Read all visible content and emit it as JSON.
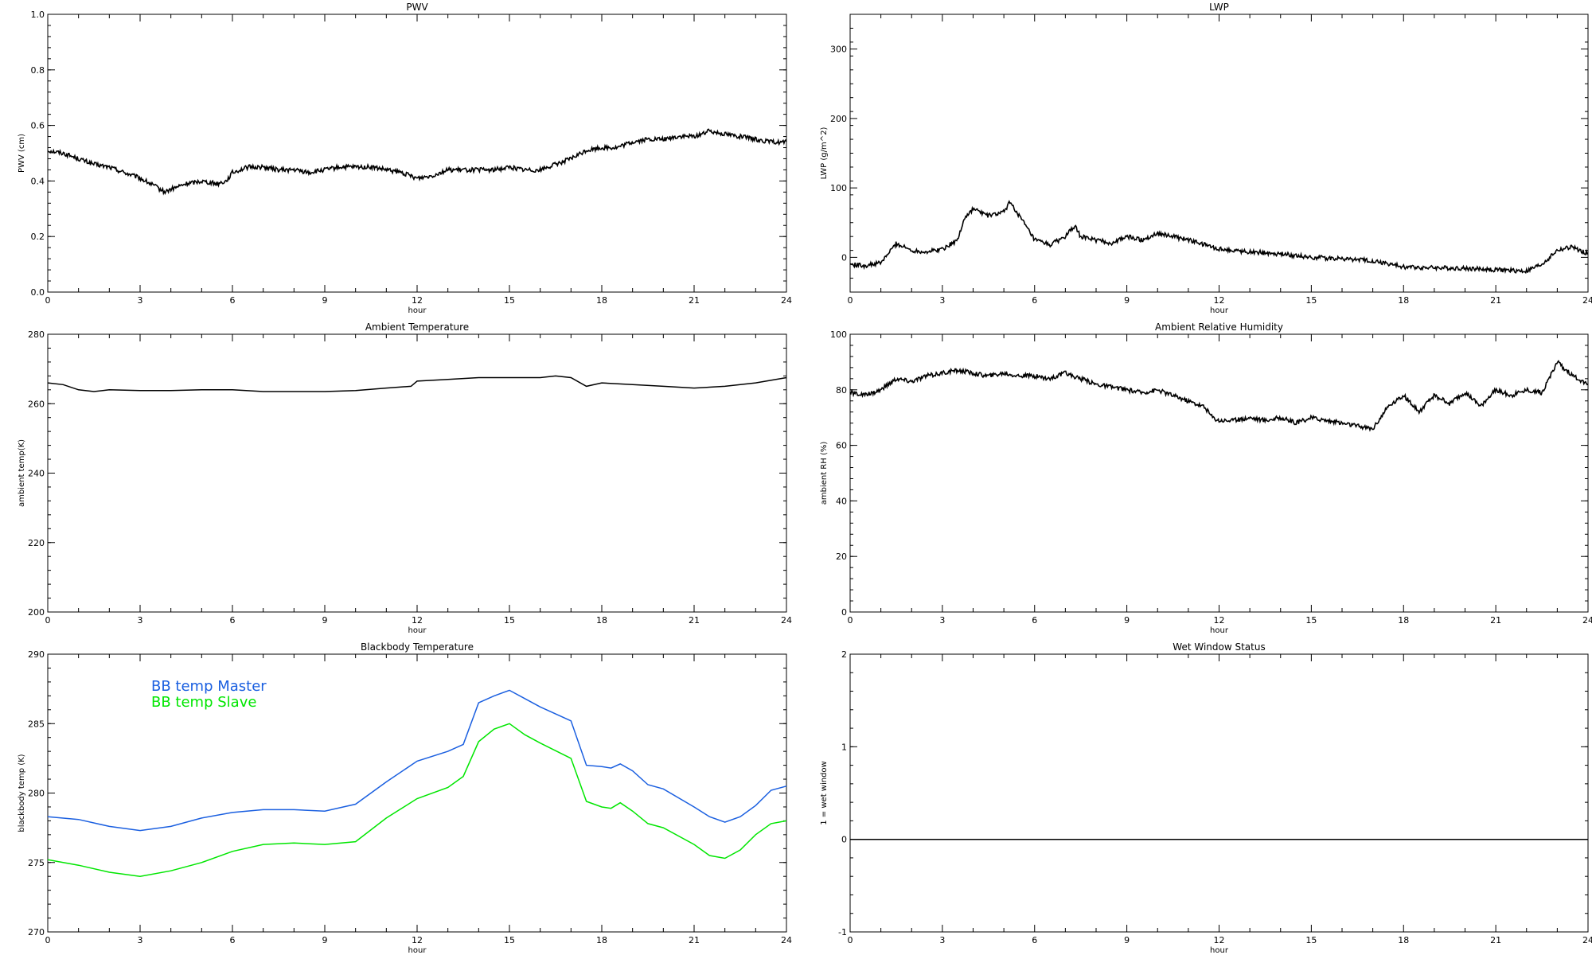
{
  "figure": {
    "panels": [
      {
        "title": "PWV",
        "xlabel": "hour",
        "ylabel": "PWV (cm)"
      },
      {
        "title": "LWP",
        "xlabel": "hour",
        "ylabel": "LWP (g/m^2)"
      },
      {
        "title": "Ambient Temperature",
        "xlabel": "hour",
        "ylabel": "ambient temp(K)"
      },
      {
        "title": "Ambient Relative Humidity",
        "xlabel": "hour",
        "ylabel": "ambient RH (%)"
      },
      {
        "title": "Blackbody Temperature",
        "xlabel": "hour",
        "ylabel": "blackbody temp (K)"
      },
      {
        "title": "Wet Window Status",
        "xlabel": "hour",
        "ylabel": "1 = wet window"
      }
    ]
  },
  "chart_data": [
    {
      "type": "line",
      "title": "PWV",
      "xlabel": "hour",
      "ylabel": "PWV (cm)",
      "xlim": [
        0,
        24
      ],
      "ylim": [
        0.0,
        1.0
      ],
      "xticks": [
        "0",
        "3",
        "6",
        "9",
        "12",
        "15",
        "18",
        "21",
        "24"
      ],
      "yticks": [
        "0.0",
        "0.2",
        "0.4",
        "0.6",
        "0.8",
        "1.0"
      ],
      "noisy": true,
      "series": [
        {
          "color": "#000000",
          "x": [
            0,
            0.5,
            1,
            1.5,
            2,
            2.5,
            3,
            3.5,
            3.8,
            4,
            4.5,
            5,
            5.5,
            5.8,
            6,
            6.5,
            7,
            7.5,
            8,
            8.5,
            9,
            9.5,
            10,
            10.5,
            11,
            11.5,
            12,
            12.5,
            13,
            13.5,
            14,
            14.5,
            15,
            15.5,
            16,
            16.5,
            17,
            17.5,
            18,
            18.5,
            19,
            19.5,
            20,
            20.5,
            21,
            21.5,
            22,
            22.5,
            23,
            23.5,
            24
          ],
          "y": [
            0.51,
            0.5,
            0.48,
            0.46,
            0.45,
            0.43,
            0.41,
            0.38,
            0.36,
            0.37,
            0.39,
            0.4,
            0.39,
            0.4,
            0.43,
            0.45,
            0.45,
            0.44,
            0.44,
            0.43,
            0.44,
            0.45,
            0.45,
            0.45,
            0.44,
            0.43,
            0.41,
            0.42,
            0.44,
            0.44,
            0.44,
            0.44,
            0.45,
            0.44,
            0.44,
            0.46,
            0.48,
            0.51,
            0.52,
            0.52,
            0.54,
            0.55,
            0.55,
            0.56,
            0.56,
            0.58,
            0.57,
            0.56,
            0.55,
            0.54,
            0.54
          ]
        }
      ]
    },
    {
      "type": "line",
      "title": "LWP",
      "xlabel": "hour",
      "ylabel": "LWP (g/m^2)",
      "xlim": [
        0,
        24
      ],
      "ylim": [
        -50,
        350
      ],
      "xticks": [
        "0",
        "3",
        "6",
        "9",
        "12",
        "15",
        "18",
        "21",
        "24"
      ],
      "yticks": [
        "0",
        "100",
        "200",
        "300"
      ],
      "noisy": true,
      "series": [
        {
          "color": "#000000",
          "x": [
            0,
            0.5,
            1,
            1.5,
            2,
            2.5,
            3,
            3.5,
            3.7,
            4,
            4.5,
            5,
            5.2,
            5.5,
            6,
            6.5,
            7,
            7.3,
            7.5,
            8,
            8.5,
            9,
            9.5,
            10,
            10.5,
            11,
            12,
            13,
            14,
            15,
            16,
            17,
            18,
            19,
            20,
            21,
            22,
            22.5,
            23,
            23.5,
            24
          ],
          "y": [
            -10,
            -12,
            -8,
            20,
            10,
            8,
            12,
            25,
            55,
            70,
            60,
            65,
            80,
            60,
            25,
            18,
            30,
            45,
            30,
            25,
            20,
            30,
            25,
            35,
            30,
            25,
            12,
            8,
            5,
            0,
            -2,
            -5,
            -14,
            -15,
            -16,
            -18,
            -20,
            -10,
            10,
            15,
            5
          ]
        }
      ]
    },
    {
      "type": "line",
      "title": "Ambient Temperature",
      "xlabel": "hour",
      "ylabel": "ambient temp(K)",
      "xlim": [
        0,
        24
      ],
      "ylim": [
        200,
        280
      ],
      "xticks": [
        "0",
        "3",
        "6",
        "9",
        "12",
        "15",
        "18",
        "21",
        "24"
      ],
      "yticks": [
        "200",
        "220",
        "240",
        "260",
        "280"
      ],
      "series": [
        {
          "color": "#000000",
          "x": [
            0,
            0.5,
            1,
            1.5,
            2,
            3,
            4,
            5,
            6,
            7,
            8,
            9,
            10,
            11,
            11.8,
            12,
            13,
            14,
            15,
            16,
            16.5,
            17,
            17.5,
            18,
            19,
            20,
            21,
            22,
            23,
            24
          ],
          "y": [
            266,
            265.5,
            264,
            263.5,
            264,
            263.8,
            263.8,
            264,
            264,
            263.5,
            263.5,
            263.5,
            263.8,
            264.5,
            265,
            266.5,
            267,
            267.5,
            267.5,
            267.5,
            268,
            267.5,
            265,
            266,
            265.5,
            265,
            264.5,
            265,
            266,
            267.5
          ]
        }
      ]
    },
    {
      "type": "line",
      "title": "Ambient Relative Humidity",
      "xlabel": "hour",
      "ylabel": "ambient RH (%)",
      "xlim": [
        0,
        24
      ],
      "ylim": [
        0,
        100
      ],
      "xticks": [
        "0",
        "3",
        "6",
        "9",
        "12",
        "15",
        "18",
        "21",
        "24"
      ],
      "yticks": [
        "0",
        "20",
        "40",
        "60",
        "80",
        "100"
      ],
      "noisy": true,
      "series": [
        {
          "color": "#000000",
          "x": [
            0,
            0.5,
            1,
            1.5,
            2,
            2.5,
            3,
            3.5,
            4,
            4.5,
            5,
            5.5,
            6,
            6.5,
            7,
            7.5,
            8,
            8.5,
            9,
            9.5,
            10,
            10.5,
            11,
            11.5,
            11.8,
            12,
            12.5,
            13,
            13.5,
            14,
            14.5,
            15,
            15.5,
            16,
            16.5,
            17,
            17.5,
            18,
            18.5,
            19,
            19.5,
            20,
            20.5,
            21,
            21.5,
            22,
            22.5,
            23,
            23.5,
            24
          ],
          "y": [
            79,
            78,
            80,
            84,
            83,
            85,
            86,
            87,
            86,
            85,
            86,
            85,
            85,
            84,
            86,
            84,
            82,
            81,
            80,
            79,
            80,
            78,
            76,
            74,
            70,
            69,
            69,
            70,
            69,
            70,
            68,
            70,
            69,
            68,
            67,
            66,
            74,
            78,
            72,
            78,
            75,
            79,
            74,
            80,
            78,
            80,
            79,
            90,
            85,
            82
          ]
        }
      ]
    },
    {
      "type": "line",
      "title": "Blackbody Temperature",
      "xlabel": "hour",
      "ylabel": "blackbody temp (K)",
      "xlim": [
        0,
        24
      ],
      "ylim": [
        270,
        290
      ],
      "xticks": [
        "0",
        "3",
        "6",
        "9",
        "12",
        "15",
        "18",
        "21",
        "24"
      ],
      "yticks": [
        "270",
        "275",
        "280",
        "285",
        "290"
      ],
      "legend": "top-left",
      "series": [
        {
          "name": "BB temp Master",
          "color": "#1a5fe0",
          "x": [
            0,
            1,
            2,
            3,
            4,
            5,
            6,
            7,
            8,
            9,
            10,
            11,
            12,
            13,
            13.5,
            14,
            14.5,
            15,
            15.5,
            16,
            17,
            17.5,
            18,
            18.3,
            18.6,
            19,
            19.5,
            20,
            21,
            21.5,
            22,
            22.5,
            23,
            23.5,
            24
          ],
          "y": [
            278.3,
            278.1,
            277.6,
            277.3,
            277.6,
            278.2,
            278.6,
            278.8,
            278.8,
            278.7,
            279.2,
            280.8,
            282.3,
            283.0,
            283.5,
            286.5,
            287.0,
            287.4,
            286.8,
            286.2,
            285.2,
            282.0,
            281.9,
            281.8,
            282.1,
            281.6,
            280.6,
            280.3,
            279.0,
            278.3,
            277.9,
            278.3,
            279.1,
            280.2,
            280.5
          ]
        },
        {
          "name": "BB temp Slave",
          "color": "#00e600",
          "x": [
            0,
            1,
            2,
            3,
            4,
            5,
            6,
            7,
            8,
            9,
            10,
            11,
            12,
            13,
            13.5,
            14,
            14.5,
            15,
            15.5,
            16,
            17,
            17.5,
            18,
            18.3,
            18.6,
            19,
            19.5,
            20,
            21,
            21.5,
            22,
            22.5,
            23,
            23.5,
            24
          ],
          "y": [
            275.2,
            274.8,
            274.3,
            274.0,
            274.4,
            275.0,
            275.8,
            276.3,
            276.4,
            276.3,
            276.5,
            278.2,
            279.6,
            280.4,
            281.2,
            283.7,
            284.6,
            285.0,
            284.2,
            283.6,
            282.5,
            279.4,
            279.0,
            278.9,
            279.3,
            278.7,
            277.8,
            277.5,
            276.3,
            275.5,
            275.3,
            275.9,
            277.0,
            277.8,
            278.0
          ]
        }
      ]
    },
    {
      "type": "line",
      "title": "Wet Window Status",
      "xlabel": "hour",
      "ylabel": "1 = wet window",
      "xlim": [
        0,
        24
      ],
      "ylim": [
        -1,
        2
      ],
      "xticks": [
        "0",
        "3",
        "6",
        "9",
        "12",
        "15",
        "18",
        "21",
        "24"
      ],
      "yticks": [
        "-1",
        "0",
        "1",
        "2"
      ],
      "series": [
        {
          "color": "#000000",
          "x": [
            0,
            24
          ],
          "y": [
            0,
            0
          ]
        }
      ]
    }
  ]
}
